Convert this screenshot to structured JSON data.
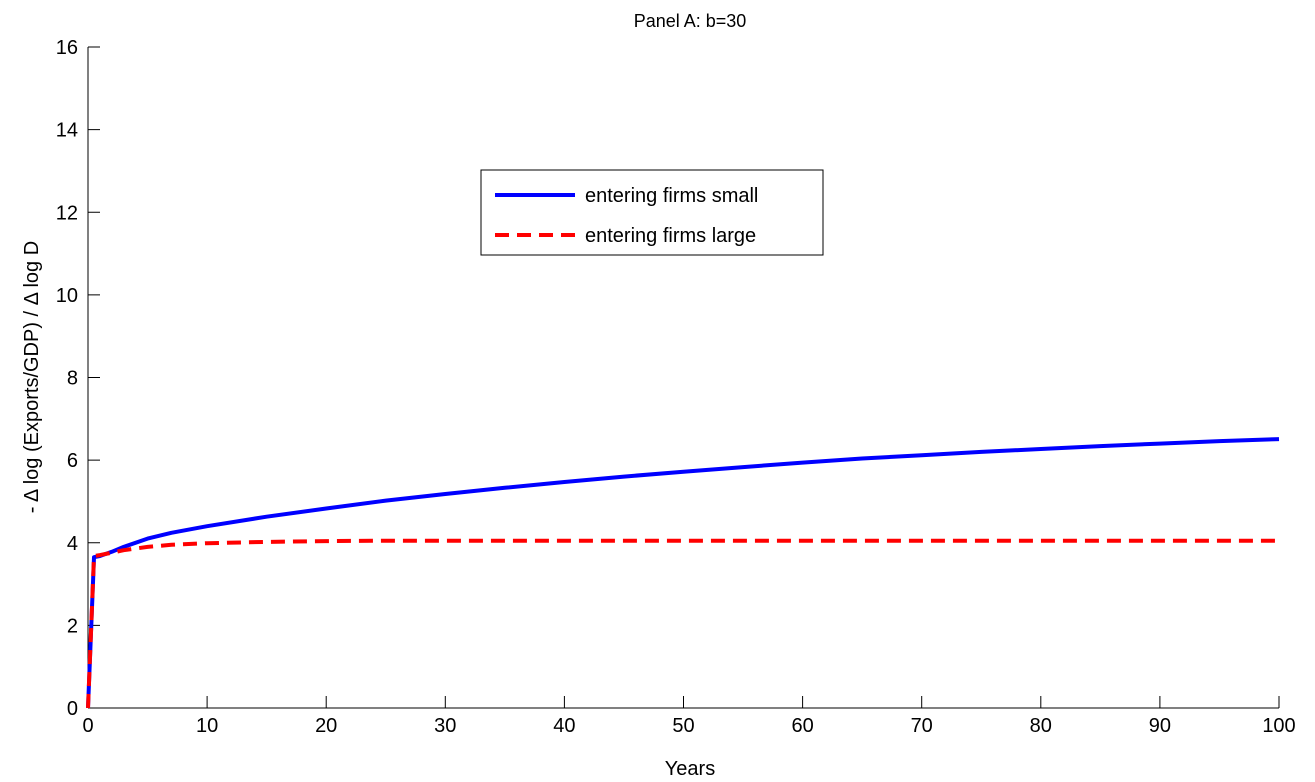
{
  "chart_data": {
    "type": "line",
    "title": "Panel A: b=30",
    "xlabel": "Years",
    "ylabel": "- Δ log (Exports/GDP) / Δ log D",
    "xlim": [
      0,
      100
    ],
    "ylim": [
      0,
      16
    ],
    "xticks": [
      0,
      10,
      20,
      30,
      40,
      50,
      60,
      70,
      80,
      90,
      100
    ],
    "yticks": [
      0,
      2,
      4,
      6,
      8,
      10,
      12,
      14,
      16
    ],
    "grid": false,
    "legend_position": "upper-center",
    "series": [
      {
        "name": "entering firms small",
        "color": "#0000ff",
        "style": "solid",
        "x": [
          0,
          0.5,
          1,
          2,
          3,
          5,
          7,
          10,
          15,
          20,
          25,
          30,
          35,
          40,
          45,
          50,
          55,
          60,
          65,
          70,
          75,
          80,
          85,
          90,
          95,
          100
        ],
        "y": [
          0,
          3.65,
          3.68,
          3.78,
          3.9,
          4.1,
          4.24,
          4.4,
          4.63,
          4.83,
          5.02,
          5.18,
          5.33,
          5.47,
          5.6,
          5.72,
          5.83,
          5.94,
          6.04,
          6.12,
          6.2,
          6.27,
          6.34,
          6.4,
          6.46,
          6.51
        ]
      },
      {
        "name": "entering firms large",
        "color": "#ff0000",
        "style": "dashed",
        "x": [
          0,
          0.5,
          1,
          2,
          3,
          5,
          7,
          10,
          15,
          20,
          25,
          30,
          40,
          50,
          60,
          70,
          80,
          90,
          100
        ],
        "y": [
          0,
          3.68,
          3.7,
          3.76,
          3.82,
          3.9,
          3.95,
          3.99,
          4.02,
          4.04,
          4.05,
          4.05,
          4.05,
          4.05,
          4.05,
          4.05,
          4.05,
          4.05,
          4.05
        ]
      }
    ]
  }
}
